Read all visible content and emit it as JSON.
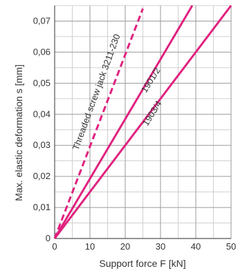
{
  "chart_data": {
    "type": "line",
    "title": "",
    "xlabel": "Support force F [kN]",
    "ylabel": "Max. elastic deformation s [mm]",
    "xlim": [
      0,
      50
    ],
    "ylim": [
      0,
      0.075
    ],
    "x_ticks": [
      "0",
      "10",
      "20",
      "30",
      "40",
      "50"
    ],
    "y_ticks": [
      "0",
      "0,01",
      "0,02",
      "0,03",
      "0,04",
      "0,05",
      "0,06",
      "0,07"
    ],
    "grid": true,
    "line_color": "#e0217f",
    "series": [
      {
        "name": "Threaded screw jack 3211-230",
        "style": "dashed",
        "x": [
          0,
          25
        ],
        "y": [
          0,
          0.074
        ]
      },
      {
        "name": "1901/2",
        "style": "solid",
        "x": [
          0,
          39
        ],
        "y": [
          0,
          0.075
        ]
      },
      {
        "name": "1903/4",
        "style": "solid",
        "x": [
          0,
          50
        ],
        "y": [
          0,
          0.075
        ]
      }
    ]
  }
}
